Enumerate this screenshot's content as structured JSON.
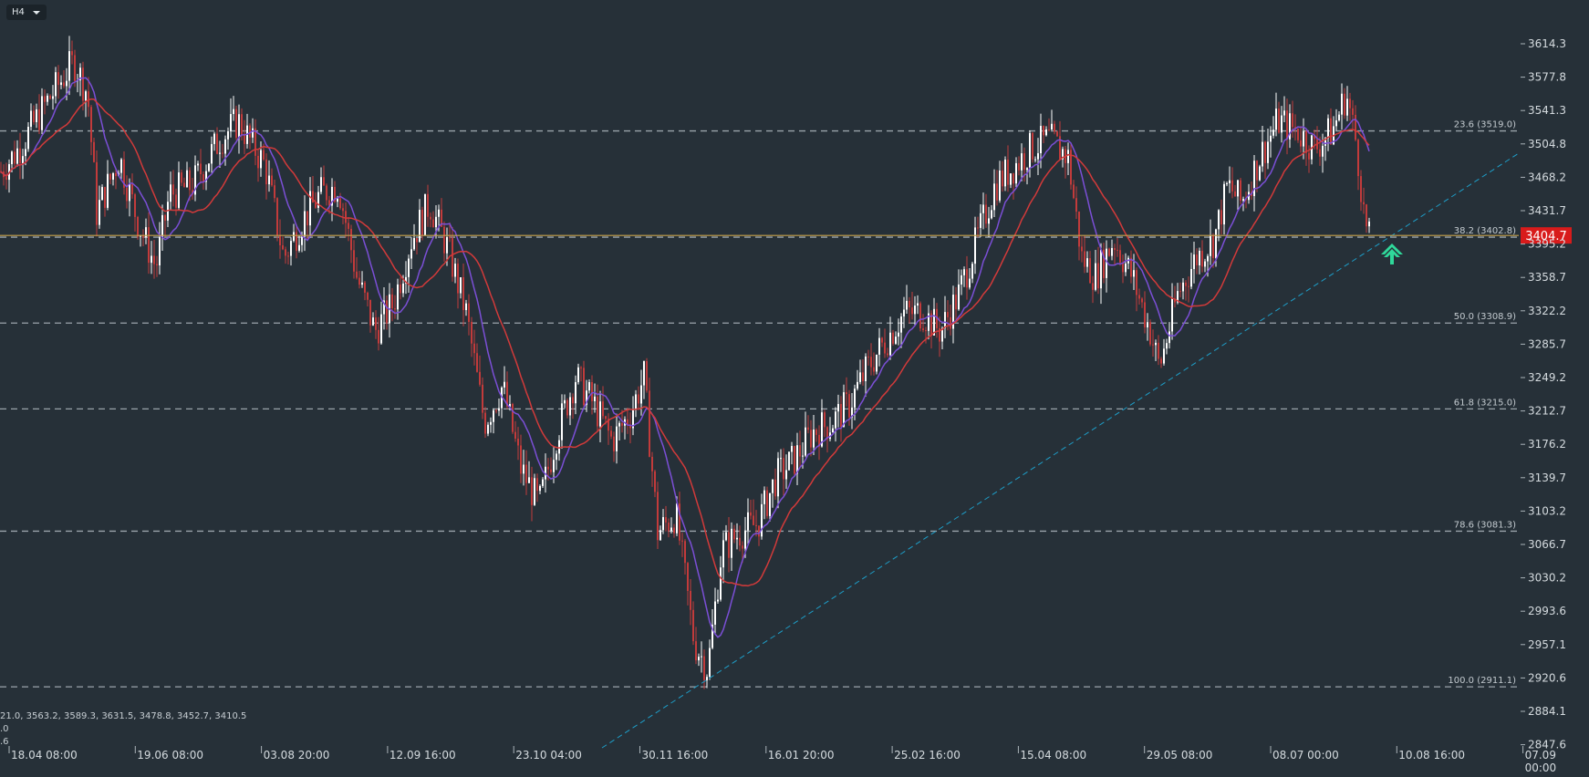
{
  "timeframe": {
    "label": "H4"
  },
  "levels_text": "21.0, 3563.2, 3589.3, 3631.5, 3478.8, 3452.7, 3410.5",
  "levels_sub": [
    ".0",
    ".6"
  ],
  "current_price": "3404.7",
  "colors": {
    "background": "#263038",
    "ma_fast": "#7b4fd6",
    "ma_slow": "#d23a3a",
    "candle_up": "#ffffff",
    "candle_down": "#c23b3b",
    "fib": "#9aa3aa",
    "trendline": "#1e9ec8",
    "price_line": "#c9a24a",
    "price_badge": "#d81b1b",
    "buy_arrow": "#2fd89a"
  },
  "icons": {
    "buy_signal": "up-arrow-icon"
  },
  "chart_data": {
    "type": "candlestick",
    "y_ticks": [
      "3614.3",
      "3577.8",
      "3541.3",
      "3504.8",
      "3468.2",
      "3431.7",
      "3395.2",
      "3358.7",
      "3322.2",
      "3285.7",
      "3249.2",
      "3212.7",
      "3176.2",
      "3139.7",
      "3103.2",
      "3066.7",
      "3030.2",
      "2993.6",
      "2957.1",
      "2920.6",
      "2884.1",
      "2847.6"
    ],
    "x_ticks": [
      "18.04 08:00",
      "19.06 08:00",
      "03.08 20:00",
      "12.09 16:00",
      "23.10 04:00",
      "30.11 16:00",
      "16.01 20:00",
      "25.02 16:00",
      "15.04 08:00",
      "29.05 08:00",
      "08.07 00:00",
      "10.08 16:00",
      "07.09"
    ],
    "x_ticks_sub": [
      {
        "index": 12,
        "text": "00:00"
      }
    ],
    "fib_levels": [
      {
        "label": "23.6 (3519.0)",
        "price": 3519.0
      },
      {
        "label": "38.2 (3402.8)",
        "price": 3402.8
      },
      {
        "label": "50.0 (3308.9)",
        "price": 3308.9
      },
      {
        "label": "61.8 (3215.0)",
        "price": 3215.0
      },
      {
        "label": "78.6 (3081.3)",
        "price": 3081.3
      },
      {
        "label": "100.0 (2911.1)",
        "price": 2911.1
      }
    ],
    "price_path": [
      [
        0,
        3475
      ],
      [
        20,
        3500
      ],
      [
        50,
        3550
      ],
      [
        80,
        3595
      ],
      [
        95,
        3560
      ],
      [
        105,
        3430
      ],
      [
        130,
        3490
      ],
      [
        150,
        3420
      ],
      [
        170,
        3370
      ],
      [
        185,
        3450
      ],
      [
        210,
        3460
      ],
      [
        240,
        3510
      ],
      [
        260,
        3530
      ],
      [
        290,
        3480
      ],
      [
        310,
        3380
      ],
      [
        330,
        3420
      ],
      [
        350,
        3450
      ],
      [
        370,
        3460
      ],
      [
        390,
        3360
      ],
      [
        410,
        3300
      ],
      [
        430,
        3330
      ],
      [
        450,
        3400
      ],
      [
        470,
        3440
      ],
      [
        490,
        3390
      ],
      [
        510,
        3320
      ],
      [
        530,
        3200
      ],
      [
        550,
        3240
      ],
      [
        570,
        3150
      ],
      [
        590,
        3110
      ],
      [
        610,
        3190
      ],
      [
        630,
        3250
      ],
      [
        650,
        3220
      ],
      [
        670,
        3180
      ],
      [
        690,
        3210
      ],
      [
        705,
        3250
      ],
      [
        720,
        3080
      ],
      [
        740,
        3100
      ],
      [
        760,
        2960
      ],
      [
        775,
        2930
      ],
      [
        790,
        3060
      ],
      [
        810,
        3080
      ],
      [
        830,
        3090
      ],
      [
        850,
        3140
      ],
      [
        870,
        3160
      ],
      [
        890,
        3190
      ],
      [
        910,
        3200
      ],
      [
        930,
        3220
      ],
      [
        950,
        3260
      ],
      [
        970,
        3290
      ],
      [
        990,
        3320
      ],
      [
        1010,
        3320
      ],
      [
        1030,
        3300
      ],
      [
        1050,
        3340
      ],
      [
        1070,
        3400
      ],
      [
        1090,
        3460
      ],
      [
        1110,
        3480
      ],
      [
        1130,
        3500
      ],
      [
        1150,
        3510
      ],
      [
        1170,
        3490
      ],
      [
        1185,
        3380
      ],
      [
        1200,
        3360
      ],
      [
        1220,
        3400
      ],
      [
        1240,
        3360
      ],
      [
        1260,
        3300
      ],
      [
        1270,
        3260
      ],
      [
        1290,
        3340
      ],
      [
        1310,
        3380
      ],
      [
        1330,
        3400
      ],
      [
        1345,
        3460
      ],
      [
        1360,
        3440
      ],
      [
        1380,
        3490
      ],
      [
        1400,
        3530
      ],
      [
        1420,
        3520
      ],
      [
        1440,
        3500
      ],
      [
        1460,
        3520
      ],
      [
        1475,
        3560
      ],
      [
        1485,
        3510
      ],
      [
        1490,
        3470
      ],
      [
        1495,
        3420
      ],
      [
        1500,
        3400
      ]
    ]
  }
}
